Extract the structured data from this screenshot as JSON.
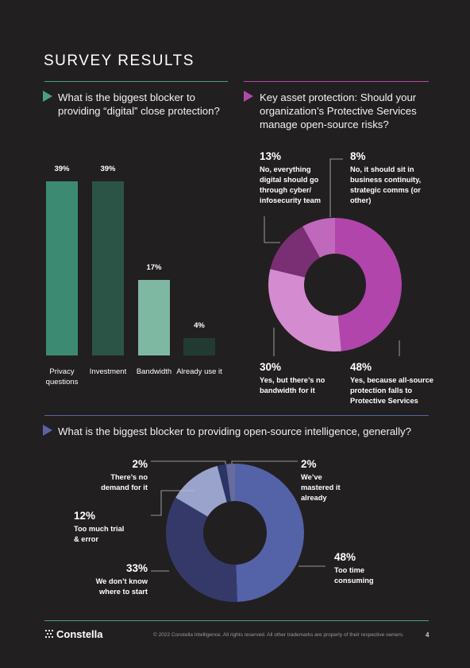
{
  "page": {
    "title": "SURVEY RESULTS",
    "page_number": "4"
  },
  "footer": {
    "logo": "Constella",
    "copyright": "© 2022 Constella Intelligence. All rights reserved. All other trademarks are property of their respective owners."
  },
  "colors": {
    "background": "#221f20",
    "teal_rule": "#4a9e87",
    "magenta_rule": "#b04aa8",
    "blue_rule": "#5a63a8"
  },
  "chart_data": [
    {
      "type": "bar",
      "question": "What is the biggest blocker to providing “digital” close protection?",
      "categories": [
        "Privacy questions",
        "Investment",
        "Bandwidth",
        "Already use it"
      ],
      "values": [
        39,
        39,
        17,
        4
      ],
      "value_labels": [
        "39%",
        "39%",
        "17%",
        "4%"
      ],
      "colors": [
        "#3c8a72",
        "#2b5446",
        "#7fb8a2",
        "#213b33"
      ],
      "ylim": [
        0,
        39
      ]
    },
    {
      "type": "pie",
      "question": "Key asset protection: Should your organization’s Protective Services manage open-source risks?",
      "slices": [
        {
          "pct_label": "48%",
          "value": 48,
          "desc": "Yes, because all-source protection falls to Protective Services",
          "color": "#b145ac"
        },
        {
          "pct_label": "30%",
          "value": 30,
          "desc": "Yes, but there’s no bandwidth for it",
          "color": "#d48bcf"
        },
        {
          "pct_label": "13%",
          "value": 13,
          "desc": "No, everything digital should go through cyber/ infosecurity team",
          "color": "#7a2e73"
        },
        {
          "pct_label": "8%",
          "value": 8,
          "desc": "No, it should sit in business continuity, strategic comms (or other)",
          "color": "#c068bb"
        }
      ]
    },
    {
      "type": "pie",
      "question": "What is the biggest blocker to providing open-source intelligence, generally?",
      "slices": [
        {
          "pct_label": "48%",
          "value": 48,
          "desc": "Too time consuming",
          "color": "#5462a8"
        },
        {
          "pct_label": "33%",
          "value": 33,
          "desc": "We don’t know where to start",
          "color": "#35396a"
        },
        {
          "pct_label": "12%",
          "value": 12,
          "desc": "Too much trial & error",
          "color": "#9aa3cc"
        },
        {
          "pct_label": "2%",
          "value": 2,
          "desc": "There’s no demand for it",
          "color": "#2c3366"
        },
        {
          "pct_label": "2%",
          "value": 2,
          "desc": "We’ve mastered it already",
          "color": "#646d9e"
        }
      ]
    }
  ]
}
